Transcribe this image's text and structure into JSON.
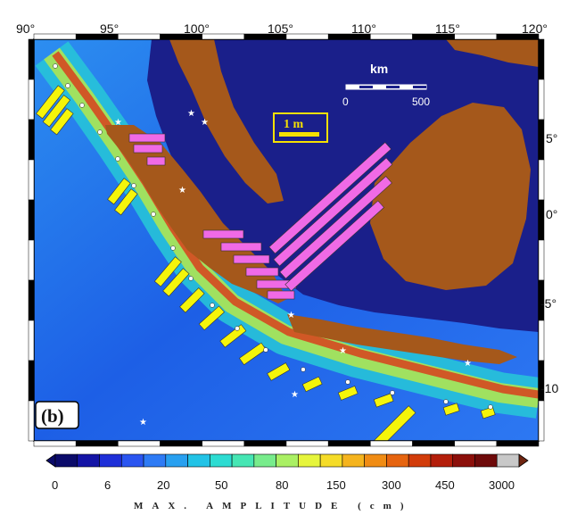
{
  "panel_label": "(b)",
  "colors": {
    "ocean_deep": "#1a1f8a",
    "land": "#a5581b",
    "yellow_bars": "#f5f50a",
    "magenta_bars": "#f06ae6",
    "scale_box_border": "#f5e000"
  },
  "map": {
    "lon_ticks": [
      "90°",
      "95°",
      "100°",
      "105°",
      "110°",
      "115°",
      "120°"
    ],
    "lat_ticks": [
      "5°",
      "0°",
      "-5°",
      "-10"
    ],
    "lon_range": [
      90,
      120
    ],
    "lat_range": [
      -12.5,
      9.5
    ],
    "km_label": "km",
    "km_ticks": [
      "0",
      "500"
    ],
    "amp_scale_label": "1 m"
  },
  "colorbar": {
    "ticks": [
      "0",
      "6",
      "20",
      "50",
      "80",
      "150",
      "300",
      "450",
      "3000"
    ],
    "title": "MAX.  AMPLITUDE  (cm)",
    "units": "cm",
    "colors": [
      "#0b0b6a",
      "#1414a6",
      "#1e2fd8",
      "#2a55f0",
      "#2e7bf5",
      "#28a0f0",
      "#22c3e6",
      "#2ddcd2",
      "#46e6b4",
      "#78ec8c",
      "#aaf064",
      "#e6f53c",
      "#f5dc28",
      "#f5b41e",
      "#f08c14",
      "#e6640f",
      "#d23c0a",
      "#b41e0a",
      "#8c0f0a",
      "#6e0a0a",
      "#c8c8c8"
    ]
  }
}
